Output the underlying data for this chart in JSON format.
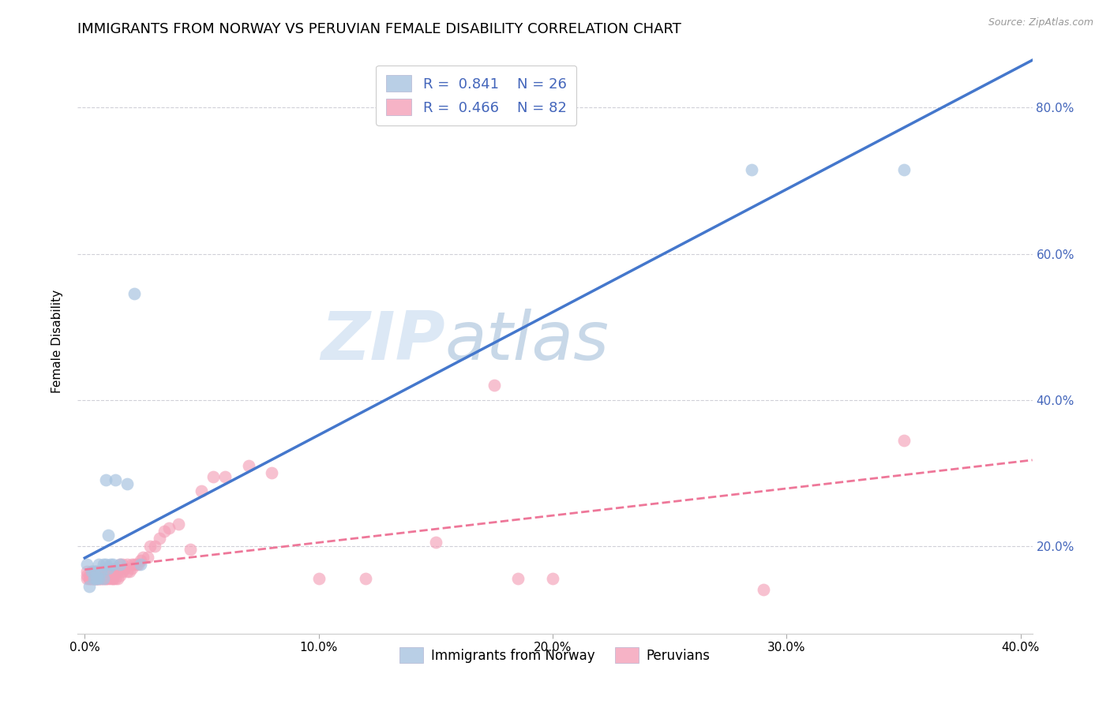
{
  "title": "IMMIGRANTS FROM NORWAY VS PERUVIAN FEMALE DISABILITY CORRELATION CHART",
  "source": "Source: ZipAtlas.com",
  "ylabel": "Female Disability",
  "xmin": -0.003,
  "xmax": 0.405,
  "ymin": 0.08,
  "ymax": 0.88,
  "yticks": [
    0.2,
    0.4,
    0.6,
    0.8
  ],
  "xticks": [
    0.0,
    0.1,
    0.2,
    0.3,
    0.4
  ],
  "norway_R": 0.841,
  "norway_N": 26,
  "peru_R": 0.466,
  "peru_N": 82,
  "norway_color": "#a8c4e0",
  "peru_color": "#f4a0b8",
  "norway_line_color": "#4477cc",
  "peru_line_color": "#ee7799",
  "legend_label_norway": "Immigrants from Norway",
  "legend_label_peru": "Peruvians",
  "norway_scatter_x": [
    0.001,
    0.002,
    0.003,
    0.004,
    0.004,
    0.005,
    0.005,
    0.005,
    0.006,
    0.006,
    0.007,
    0.008,
    0.008,
    0.009,
    0.009,
    0.01,
    0.01,
    0.011,
    0.012,
    0.013,
    0.015,
    0.018,
    0.021,
    0.024,
    0.285,
    0.35
  ],
  "norway_scatter_y": [
    0.175,
    0.145,
    0.165,
    0.155,
    0.165,
    0.155,
    0.155,
    0.165,
    0.155,
    0.175,
    0.165,
    0.155,
    0.175,
    0.175,
    0.29,
    0.17,
    0.215,
    0.175,
    0.175,
    0.29,
    0.175,
    0.285,
    0.545,
    0.175,
    0.715,
    0.715
  ],
  "peru_scatter_x": [
    0.001,
    0.001,
    0.001,
    0.002,
    0.002,
    0.002,
    0.003,
    0.003,
    0.003,
    0.003,
    0.004,
    0.004,
    0.004,
    0.004,
    0.005,
    0.005,
    0.005,
    0.005,
    0.005,
    0.006,
    0.006,
    0.006,
    0.006,
    0.007,
    0.007,
    0.007,
    0.007,
    0.008,
    0.008,
    0.008,
    0.009,
    0.009,
    0.009,
    0.01,
    0.01,
    0.01,
    0.011,
    0.011,
    0.012,
    0.012,
    0.012,
    0.013,
    0.013,
    0.013,
    0.014,
    0.014,
    0.015,
    0.015,
    0.016,
    0.016,
    0.017,
    0.018,
    0.018,
    0.019,
    0.02,
    0.02,
    0.021,
    0.022,
    0.023,
    0.024,
    0.025,
    0.027,
    0.028,
    0.03,
    0.032,
    0.034,
    0.036,
    0.04,
    0.045,
    0.05,
    0.055,
    0.06,
    0.07,
    0.08,
    0.1,
    0.12,
    0.15,
    0.175,
    0.185,
    0.2,
    0.29,
    0.35
  ],
  "peru_scatter_y": [
    0.155,
    0.16,
    0.165,
    0.155,
    0.155,
    0.16,
    0.155,
    0.155,
    0.16,
    0.165,
    0.155,
    0.155,
    0.16,
    0.165,
    0.155,
    0.155,
    0.155,
    0.16,
    0.165,
    0.155,
    0.155,
    0.16,
    0.165,
    0.155,
    0.155,
    0.16,
    0.165,
    0.155,
    0.16,
    0.165,
    0.155,
    0.155,
    0.16,
    0.155,
    0.16,
    0.165,
    0.155,
    0.165,
    0.155,
    0.155,
    0.165,
    0.155,
    0.165,
    0.17,
    0.155,
    0.165,
    0.16,
    0.175,
    0.165,
    0.175,
    0.17,
    0.165,
    0.175,
    0.165,
    0.17,
    0.175,
    0.175,
    0.175,
    0.175,
    0.18,
    0.185,
    0.185,
    0.2,
    0.2,
    0.21,
    0.22,
    0.225,
    0.23,
    0.195,
    0.275,
    0.295,
    0.295,
    0.31,
    0.3,
    0.155,
    0.155,
    0.205,
    0.42,
    0.155,
    0.155,
    0.14,
    0.345
  ],
  "background_color": "#ffffff",
  "grid_color": "#d0d0d8",
  "title_fontsize": 13,
  "axis_label_fontsize": 11,
  "tick_fontsize": 11,
  "right_axis_color": "#4466bb",
  "watermark_text": "ZIPatlas",
  "watermark_color": "#dce8f5"
}
